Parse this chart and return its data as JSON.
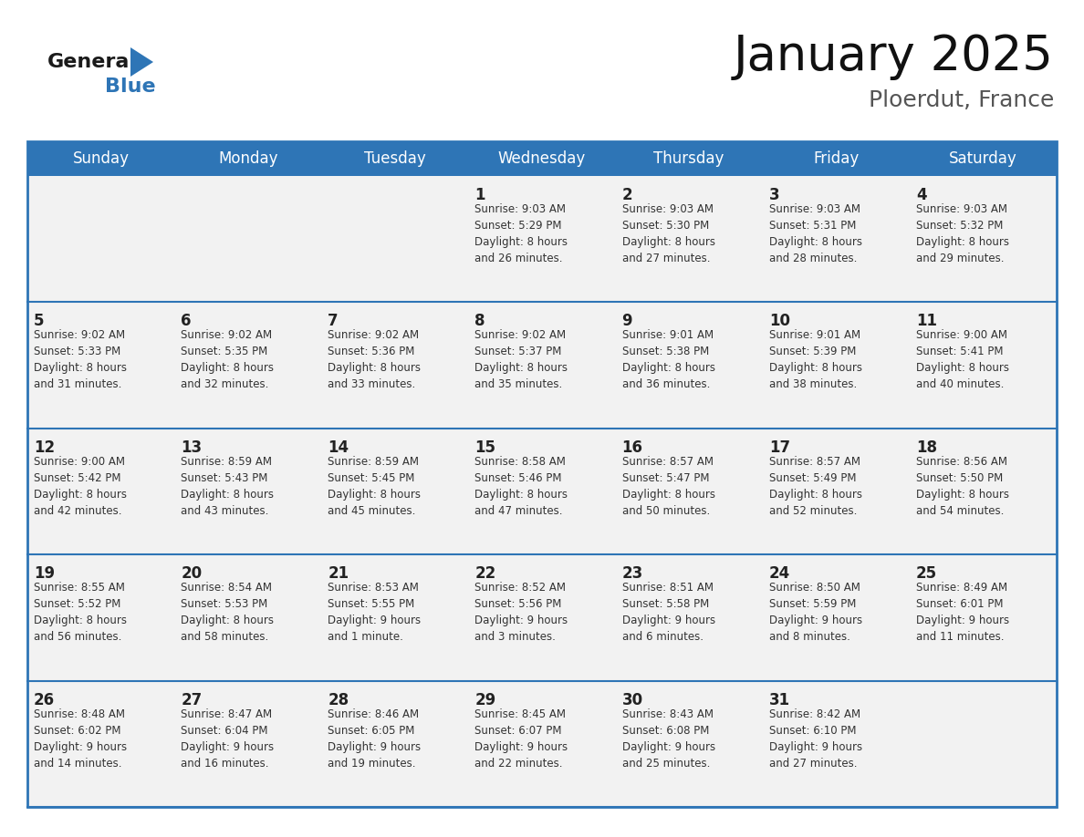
{
  "title": "January 2025",
  "subtitle": "Ploerdut, France",
  "header_color": "#2E75B6",
  "header_text_color": "#FFFFFF",
  "cell_bg": "#F2F2F2",
  "row_divider_color": "#2E75B6",
  "text_color": "#222222",
  "info_text_color": "#333333",
  "days_of_week": [
    "Sunday",
    "Monday",
    "Tuesday",
    "Wednesday",
    "Thursday",
    "Friday",
    "Saturday"
  ],
  "calendar": [
    [
      {
        "day": "",
        "info": ""
      },
      {
        "day": "",
        "info": ""
      },
      {
        "day": "",
        "info": ""
      },
      {
        "day": "1",
        "info": "Sunrise: 9:03 AM\nSunset: 5:29 PM\nDaylight: 8 hours\nand 26 minutes."
      },
      {
        "day": "2",
        "info": "Sunrise: 9:03 AM\nSunset: 5:30 PM\nDaylight: 8 hours\nand 27 minutes."
      },
      {
        "day": "3",
        "info": "Sunrise: 9:03 AM\nSunset: 5:31 PM\nDaylight: 8 hours\nand 28 minutes."
      },
      {
        "day": "4",
        "info": "Sunrise: 9:03 AM\nSunset: 5:32 PM\nDaylight: 8 hours\nand 29 minutes."
      }
    ],
    [
      {
        "day": "5",
        "info": "Sunrise: 9:02 AM\nSunset: 5:33 PM\nDaylight: 8 hours\nand 31 minutes."
      },
      {
        "day": "6",
        "info": "Sunrise: 9:02 AM\nSunset: 5:35 PM\nDaylight: 8 hours\nand 32 minutes."
      },
      {
        "day": "7",
        "info": "Sunrise: 9:02 AM\nSunset: 5:36 PM\nDaylight: 8 hours\nand 33 minutes."
      },
      {
        "day": "8",
        "info": "Sunrise: 9:02 AM\nSunset: 5:37 PM\nDaylight: 8 hours\nand 35 minutes."
      },
      {
        "day": "9",
        "info": "Sunrise: 9:01 AM\nSunset: 5:38 PM\nDaylight: 8 hours\nand 36 minutes."
      },
      {
        "day": "10",
        "info": "Sunrise: 9:01 AM\nSunset: 5:39 PM\nDaylight: 8 hours\nand 38 minutes."
      },
      {
        "day": "11",
        "info": "Sunrise: 9:00 AM\nSunset: 5:41 PM\nDaylight: 8 hours\nand 40 minutes."
      }
    ],
    [
      {
        "day": "12",
        "info": "Sunrise: 9:00 AM\nSunset: 5:42 PM\nDaylight: 8 hours\nand 42 minutes."
      },
      {
        "day": "13",
        "info": "Sunrise: 8:59 AM\nSunset: 5:43 PM\nDaylight: 8 hours\nand 43 minutes."
      },
      {
        "day": "14",
        "info": "Sunrise: 8:59 AM\nSunset: 5:45 PM\nDaylight: 8 hours\nand 45 minutes."
      },
      {
        "day": "15",
        "info": "Sunrise: 8:58 AM\nSunset: 5:46 PM\nDaylight: 8 hours\nand 47 minutes."
      },
      {
        "day": "16",
        "info": "Sunrise: 8:57 AM\nSunset: 5:47 PM\nDaylight: 8 hours\nand 50 minutes."
      },
      {
        "day": "17",
        "info": "Sunrise: 8:57 AM\nSunset: 5:49 PM\nDaylight: 8 hours\nand 52 minutes."
      },
      {
        "day": "18",
        "info": "Sunrise: 8:56 AM\nSunset: 5:50 PM\nDaylight: 8 hours\nand 54 minutes."
      }
    ],
    [
      {
        "day": "19",
        "info": "Sunrise: 8:55 AM\nSunset: 5:52 PM\nDaylight: 8 hours\nand 56 minutes."
      },
      {
        "day": "20",
        "info": "Sunrise: 8:54 AM\nSunset: 5:53 PM\nDaylight: 8 hours\nand 58 minutes."
      },
      {
        "day": "21",
        "info": "Sunrise: 8:53 AM\nSunset: 5:55 PM\nDaylight: 9 hours\nand 1 minute."
      },
      {
        "day": "22",
        "info": "Sunrise: 8:52 AM\nSunset: 5:56 PM\nDaylight: 9 hours\nand 3 minutes."
      },
      {
        "day": "23",
        "info": "Sunrise: 8:51 AM\nSunset: 5:58 PM\nDaylight: 9 hours\nand 6 minutes."
      },
      {
        "day": "24",
        "info": "Sunrise: 8:50 AM\nSunset: 5:59 PM\nDaylight: 9 hours\nand 8 minutes."
      },
      {
        "day": "25",
        "info": "Sunrise: 8:49 AM\nSunset: 6:01 PM\nDaylight: 9 hours\nand 11 minutes."
      }
    ],
    [
      {
        "day": "26",
        "info": "Sunrise: 8:48 AM\nSunset: 6:02 PM\nDaylight: 9 hours\nand 14 minutes."
      },
      {
        "day": "27",
        "info": "Sunrise: 8:47 AM\nSunset: 6:04 PM\nDaylight: 9 hours\nand 16 minutes."
      },
      {
        "day": "28",
        "info": "Sunrise: 8:46 AM\nSunset: 6:05 PM\nDaylight: 9 hours\nand 19 minutes."
      },
      {
        "day": "29",
        "info": "Sunrise: 8:45 AM\nSunset: 6:07 PM\nDaylight: 9 hours\nand 22 minutes."
      },
      {
        "day": "30",
        "info": "Sunrise: 8:43 AM\nSunset: 6:08 PM\nDaylight: 9 hours\nand 25 minutes."
      },
      {
        "day": "31",
        "info": "Sunrise: 8:42 AM\nSunset: 6:10 PM\nDaylight: 9 hours\nand 27 minutes."
      },
      {
        "day": "",
        "info": ""
      }
    ]
  ],
  "logo_general_color": "#1a1a1a",
  "logo_blue_color": "#2E75B6",
  "logo_triangle_color": "#2E75B6"
}
